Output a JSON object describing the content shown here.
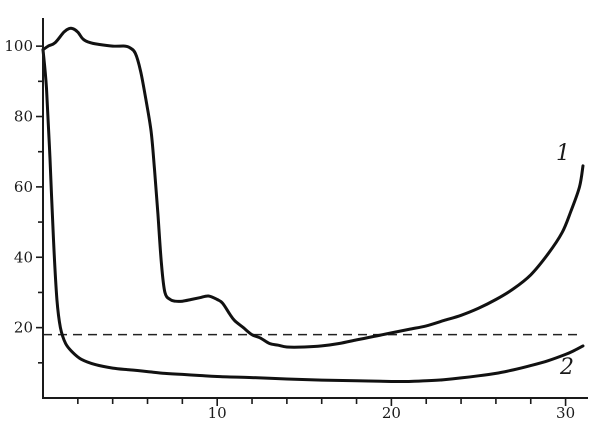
{
  "chart_data": {
    "type": "line",
    "title": "",
    "xlabel": "",
    "ylabel": "",
    "xlim": [
      0,
      31
    ],
    "ylim": [
      0,
      108
    ],
    "x_ticks": [
      {
        "value": 10,
        "label": "10"
      },
      {
        "value": 20,
        "label": "20"
      },
      {
        "value": 30,
        "label": "30"
      }
    ],
    "y_ticks": [
      {
        "value": 20,
        "label": "20"
      },
      {
        "value": 40,
        "label": "40"
      },
      {
        "value": 60,
        "label": "60"
      },
      {
        "value": 80,
        "label": "80"
      },
      {
        "value": 100,
        "label": "100"
      }
    ],
    "x_minor_ticks": [
      2,
      4,
      6,
      8,
      12,
      14,
      16,
      18,
      22,
      24,
      26,
      28
    ],
    "y_minor_ticks": [
      10,
      30,
      50,
      70,
      90
    ],
    "grid": false,
    "series": [
      {
        "name": "1",
        "x": [
          0,
          0.3,
          0.7,
          1.2,
          1.5,
          1.7,
          2.0,
          2.3,
          2.7,
          3.2,
          4.0,
          4.7,
          5.0,
          5.3,
          5.6,
          5.9,
          6.2,
          6.4,
          6.6,
          6.8,
          7.0,
          7.3,
          7.6,
          8.0,
          8.5,
          9.0,
          9.5,
          10.0,
          10.3,
          10.7,
          11.0,
          11.5,
          12.0,
          12.5,
          13.0,
          13.5,
          14.0,
          15.0,
          16.0,
          17.0,
          18.0,
          19.0,
          20.0,
          21.0,
          22.0,
          23.0,
          24.0,
          25.0,
          26.0,
          27.0,
          28.0,
          29.0,
          29.8,
          30.3,
          30.8,
          31.0
        ],
        "y": [
          99,
          100,
          101,
          104,
          105,
          105,
          104,
          102,
          101,
          100.5,
          100,
          100,
          99.5,
          98,
          93,
          85,
          76,
          65,
          52,
          38,
          30,
          28,
          27.5,
          27.5,
          28,
          28.5,
          29,
          28,
          27,
          24,
          22,
          20,
          18,
          17,
          15.5,
          15,
          14.5,
          14.5,
          14.8,
          15.5,
          16.5,
          17.5,
          18.5,
          19.5,
          20.5,
          22,
          23.5,
          25.5,
          28,
          31,
          35,
          41,
          47,
          53,
          60,
          66
        ]
      },
      {
        "name": "2",
        "x": [
          0,
          0.2,
          0.4,
          0.6,
          0.8,
          1.0,
          1.3,
          1.7,
          2.2,
          3.0,
          4.0,
          5.0,
          6.0,
          7.0,
          8.0,
          9.0,
          10.0,
          12.0,
          14.0,
          16.0,
          18.0,
          20.0,
          21.0,
          22.0,
          23.0,
          24.0,
          25.0,
          26.0,
          27.0,
          28.0,
          29.0,
          30.0,
          30.5,
          31.0
        ],
        "y": [
          99,
          88,
          68,
          45,
          28,
          20,
          15.5,
          13,
          11,
          9.5,
          8.5,
          8,
          7.5,
          7,
          6.7,
          6.4,
          6.1,
          5.8,
          5.4,
          5.1,
          4.9,
          4.7,
          4.7,
          4.9,
          5.2,
          5.7,
          6.3,
          7,
          8,
          9.2,
          10.6,
          12.4,
          13.5,
          14.8
        ]
      }
    ],
    "reference_lines": [
      {
        "type": "horizontal",
        "y": 18,
        "x_range": [
          0,
          31
        ],
        "style": "dashed"
      }
    ]
  }
}
